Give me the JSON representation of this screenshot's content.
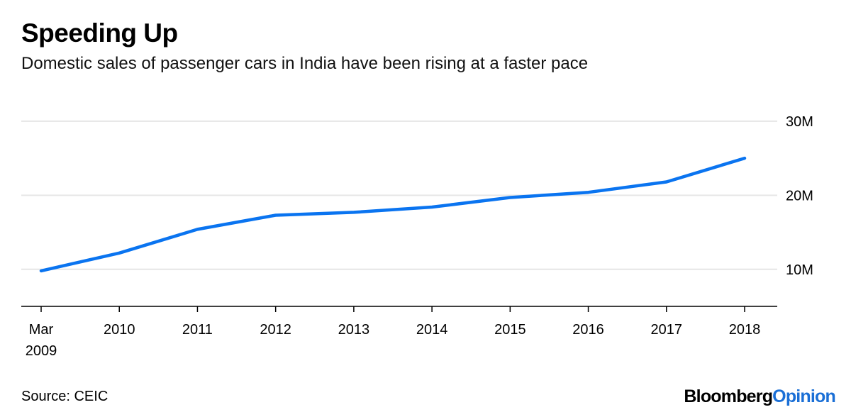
{
  "header": {
    "title": "Speeding Up",
    "subtitle": "Domestic sales of passenger cars in India have been rising at a faster pace"
  },
  "footer": {
    "source": "Source: CEIC",
    "brand_part1": "Bloomberg",
    "brand_part2": "Opinion"
  },
  "colors": {
    "line": "#0a74f0",
    "grid": "#e6e6e6",
    "axis": "#000000",
    "brand_accent": "#1a6fd6"
  },
  "chart_data": {
    "type": "line",
    "title": "Speeding Up",
    "subtitle": "Domestic sales of passenger cars in India have been rising at a faster pace",
    "xlabel": "",
    "ylabel": "",
    "x_ticks": [
      {
        "x": "Mar 2009",
        "line1": "Mar",
        "line2": "2009"
      },
      {
        "x": "2010",
        "line1": "2010",
        "line2": ""
      },
      {
        "x": "2011",
        "line1": "2011",
        "line2": ""
      },
      {
        "x": "2012",
        "line1": "2012",
        "line2": ""
      },
      {
        "x": "2013",
        "line1": "2013",
        "line2": ""
      },
      {
        "x": "2014",
        "line1": "2014",
        "line2": ""
      },
      {
        "x": "2015",
        "line1": "2015",
        "line2": ""
      },
      {
        "x": "2016",
        "line1": "2016",
        "line2": ""
      },
      {
        "x": "2017",
        "line1": "2017",
        "line2": ""
      },
      {
        "x": "2018",
        "line1": "2018",
        "line2": ""
      }
    ],
    "y_ticks": [
      {
        "value": 10000000,
        "label": "10M"
      },
      {
        "value": 20000000,
        "label": "20M"
      },
      {
        "value": 30000000,
        "label": "30M"
      }
    ],
    "ylim": [
      5000000,
      32000000
    ],
    "series": [
      {
        "values": [
          9800000,
          12200000,
          15400000,
          17300000,
          17700000,
          18400000,
          19700000,
          20400000,
          21800000,
          25000000
        ]
      }
    ],
    "grid": true,
    "y_axis_side": "right"
  }
}
